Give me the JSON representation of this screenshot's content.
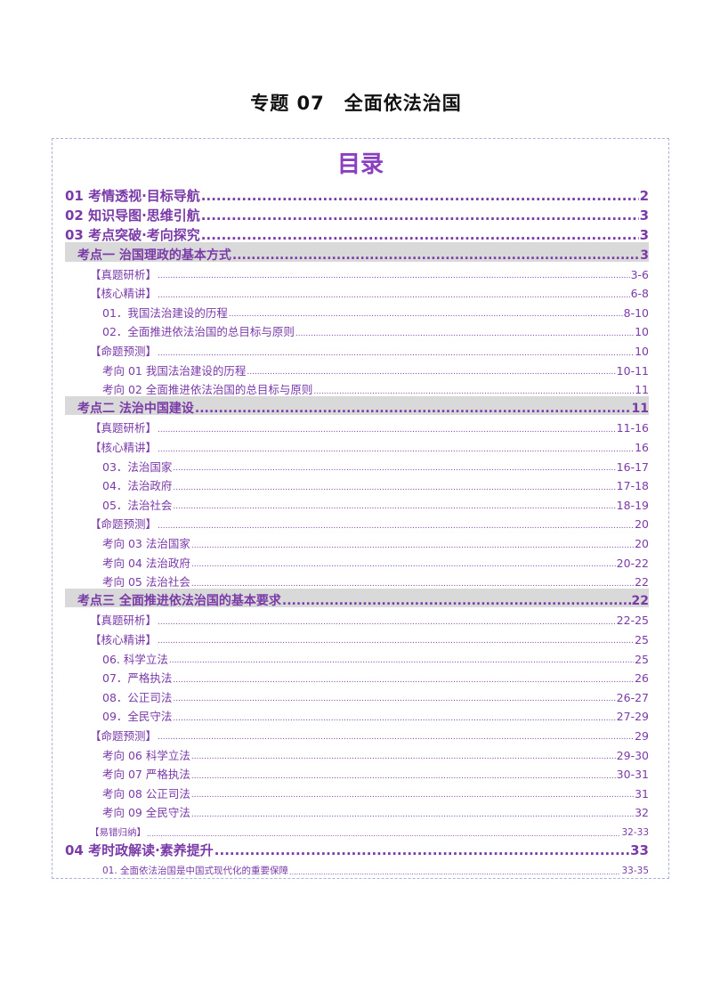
{
  "document": {
    "title": "专题 07　全面依法治国"
  },
  "toc": {
    "heading": "目录",
    "entries": [
      {
        "level": "l1",
        "label": "01 考情透视·目标导航",
        "page": "2"
      },
      {
        "level": "l1",
        "label": "02 知识导图·思维引航",
        "page": "3"
      },
      {
        "level": "l1",
        "label": "03 考点突破·考向探究",
        "page": "3"
      },
      {
        "level": "l2",
        "label": "考点一  治国理政的基本方式",
        "page": "3"
      },
      {
        "level": "l3",
        "label": "【真题研析】",
        "page": "3-6"
      },
      {
        "level": "l3",
        "label": "【核心精讲】",
        "page": "6-8"
      },
      {
        "level": "l4",
        "label": "01．我国法治建设的历程",
        "page": "8-10"
      },
      {
        "level": "l4",
        "label": "02．全面推进依法治国的总目标与原则",
        "page": "10"
      },
      {
        "level": "l3",
        "label": "【命题预测】",
        "page": "10"
      },
      {
        "level": "l4",
        "label": "考向 01  我国法治建设的历程",
        "page": "10-11"
      },
      {
        "level": "l4",
        "label": "考向 02  全面推进依法治国的总目标与原则",
        "page": "11"
      },
      {
        "level": "l2",
        "label": "考点二  法治中国建设",
        "page": "11"
      },
      {
        "level": "l3",
        "label": "【真题研析】",
        "page": "11-16"
      },
      {
        "level": "l3",
        "label": "【核心精讲】",
        "page": "16"
      },
      {
        "level": "l4",
        "label": "03．法治国家",
        "page": "16-17"
      },
      {
        "level": "l4",
        "label": "04．法治政府",
        "page": "17-18"
      },
      {
        "level": "l4",
        "label": "05．法治社会",
        "page": "18-19"
      },
      {
        "level": "l3",
        "label": "【命题预测】",
        "page": "20"
      },
      {
        "level": "l4",
        "label": "考向 03  法治国家",
        "page": "20"
      },
      {
        "level": "l4",
        "label": "考向 04  法治政府",
        "page": "20-22"
      },
      {
        "level": "l4",
        "label": "考向 05  法治社会",
        "page": "22"
      },
      {
        "level": "l2",
        "label": "考点三  全面推进依法治国的基本要求",
        "page": "22"
      },
      {
        "level": "l3",
        "label": "【真题研析】",
        "page": "22-25"
      },
      {
        "level": "l3",
        "label": "【核心精讲】",
        "page": "25"
      },
      {
        "level": "l4",
        "label": "06. 科学立法",
        "page": "25"
      },
      {
        "level": "l4",
        "label": "07．严格执法",
        "page": "26"
      },
      {
        "level": "l4",
        "label": "08．公正司法",
        "page": "26-27"
      },
      {
        "level": "l4",
        "label": "09．全民守法",
        "page": "27-29"
      },
      {
        "level": "l3",
        "label": "【命题预测】",
        "page": "29"
      },
      {
        "level": "l4",
        "label": "考向 06  科学立法",
        "page": "29-30"
      },
      {
        "level": "l4",
        "label": "考向 07  严格执法",
        "page": "30-31"
      },
      {
        "level": "l4",
        "label": "考向 08  公正司法",
        "page": "31"
      },
      {
        "level": "l4",
        "label": "考向 09  全民守法",
        "page": "32"
      },
      {
        "level": "small",
        "label": "【易错归纳】",
        "page": "32-33"
      },
      {
        "level": "l1",
        "label": "04 考时政解读·素养提升",
        "page": "33"
      },
      {
        "level": "small indent",
        "label": "01.  全面依法治国是中国式现代化的重要保障",
        "page": "33-35"
      }
    ]
  }
}
